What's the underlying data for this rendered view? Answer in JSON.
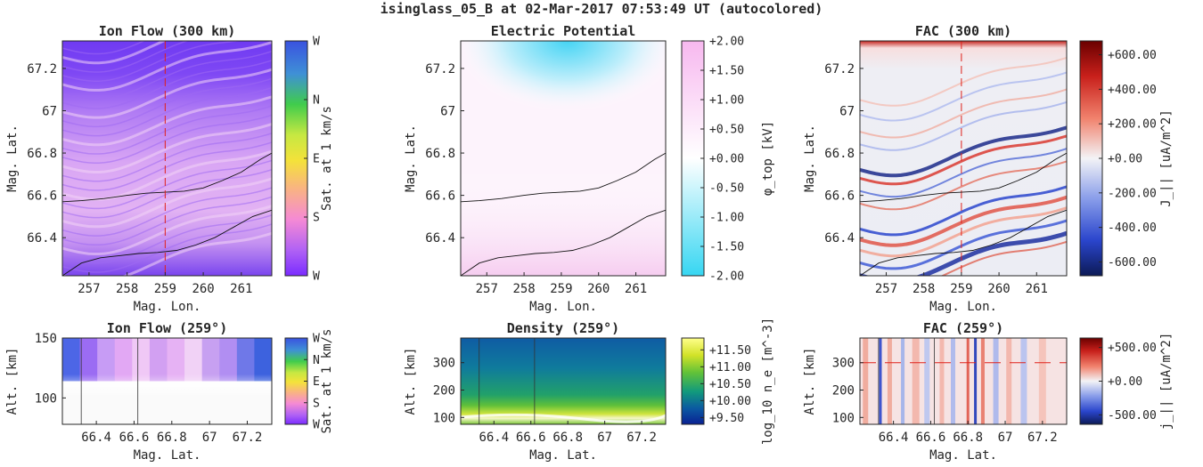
{
  "figure": {
    "suptitle": "isinglass_05_B at 02-Mar-2017 07:53:49 UT (autocolored)"
  },
  "chart_data": [
    {
      "id": "ion-flow-300",
      "type": "heatmap",
      "title": "Ion Flow (300 km)",
      "xlabel": "Mag. Lon.",
      "ylabel": "Mag. Lat.",
      "xlim": [
        256.3,
        261.8
      ],
      "ylim": [
        66.22,
        67.33
      ],
      "xticks": [
        257,
        258,
        259,
        260,
        261
      ],
      "yticks": [
        66.4,
        66.6,
        66.8,
        67.0,
        67.2
      ],
      "ytick_labels": [
        "66.4",
        "66.6",
        "66.8",
        "67",
        "67.2"
      ],
      "colorbar": {
        "label": "Sat. at 1 km/s",
        "ticks": [
          "W",
          "N",
          "E",
          "S",
          "W"
        ]
      },
      "cut_longitude": 259,
      "traces": [
        {
          "x": [
            256.3,
            256.8,
            257.4,
            258.0,
            258.5,
            259.0,
            259.5,
            260.0,
            260.5,
            261.0,
            261.5,
            261.8
          ],
          "y": [
            66.57,
            66.575,
            66.585,
            66.6,
            66.61,
            66.615,
            66.62,
            66.635,
            66.67,
            66.71,
            66.77,
            66.8
          ]
        },
        {
          "x": [
            256.3,
            256.8,
            257.3,
            257.8,
            258.3,
            258.8,
            259.3,
            259.8,
            260.3,
            260.8,
            261.3,
            261.8
          ],
          "y": [
            66.22,
            66.28,
            66.305,
            66.315,
            66.325,
            66.33,
            66.34,
            66.365,
            66.4,
            66.45,
            66.5,
            66.53
          ]
        }
      ]
    },
    {
      "id": "electric-potential",
      "type": "heatmap",
      "title": "Electric Potential",
      "xlabel": "Mag. Lon.",
      "ylabel": "Mag. Lat.",
      "xlim": [
        256.3,
        261.8
      ],
      "ylim": [
        66.22,
        67.33
      ],
      "xticks": [
        257,
        258,
        259,
        260,
        261
      ],
      "yticks": [
        66.4,
        66.6,
        66.8,
        67.0,
        67.2
      ],
      "ytick_labels": [
        "66.4",
        "66.6",
        "66.8",
        "67",
        "67.2"
      ],
      "colorbar": {
        "label": "φ_top [kV]",
        "range": [
          -2.0,
          2.0
        ],
        "ticks": [
          "+2.00",
          "+1.50",
          "+1.00",
          "+0.50",
          "+0.00",
          "-0.50",
          "-1.00",
          "-1.50",
          "-2.00"
        ]
      }
    },
    {
      "id": "fac-300",
      "type": "heatmap",
      "title": "FAC (300 km)",
      "xlabel": "Mag. Lon.",
      "ylabel": "Mag. Lat.",
      "xlim": [
        256.3,
        261.8
      ],
      "ylim": [
        66.22,
        67.33
      ],
      "xticks": [
        257,
        258,
        259,
        260,
        261
      ],
      "yticks": [
        66.4,
        66.6,
        66.8,
        67.0,
        67.2
      ],
      "ytick_labels": [
        "66.4",
        "66.6",
        "66.8",
        "67",
        "67.2"
      ],
      "colorbar": {
        "label": "J_|| [uA/m^2]",
        "range": [
          -680,
          680
        ],
        "ticks": [
          "+600.00",
          "+400.00",
          "+200.00",
          "+0.00",
          "-200.00",
          "-400.00",
          "-600.00"
        ]
      },
      "cut_longitude": 259
    },
    {
      "id": "ion-flow-259",
      "type": "heatmap",
      "title": "Ion Flow (259°)",
      "xlabel": "Mag. Lat.",
      "ylabel": "Alt. [km]",
      "xlim": [
        66.22,
        67.33
      ],
      "ylim": [
        78,
        150
      ],
      "xticks": [
        66.4,
        66.6,
        66.8,
        67.0,
        67.2
      ],
      "xtick_labels": [
        "66.4",
        "66.6",
        "66.8",
        "67",
        "67.2"
      ],
      "yticks": [
        100,
        150
      ],
      "colorbar": {
        "label": "Sat. at 1 km/s",
        "ticks": [
          "W",
          "N",
          "E",
          "S",
          "W"
        ]
      },
      "boundary_latitudes": [
        66.32,
        66.62
      ]
    },
    {
      "id": "density-259",
      "type": "heatmap",
      "title": "Density (259°)",
      "xlabel": "Mag. Lat.",
      "ylabel": "Alt. [km]",
      "xlim": [
        66.22,
        67.33
      ],
      "ylim": [
        75,
        390
      ],
      "xticks": [
        66.4,
        66.6,
        66.8,
        67.0,
        67.2
      ],
      "xtick_labels": [
        "66.4",
        "66.6",
        "66.8",
        "67",
        "67.2"
      ],
      "yticks": [
        100,
        200,
        300
      ],
      "colorbar": {
        "label": "log_10 n_e [m^-3]",
        "range": [
          9.3,
          11.85
        ],
        "ticks": [
          "+11.50",
          "+11.00",
          "+10.50",
          "+10.00",
          "+9.50"
        ]
      },
      "boundary_latitudes": [
        66.32,
        66.62
      ]
    },
    {
      "id": "fac-259",
      "type": "heatmap",
      "title": "FAC (259°)",
      "xlabel": "Mag. Lat.",
      "ylabel": "Alt. [km]",
      "xlim": [
        66.22,
        67.33
      ],
      "ylim": [
        75,
        390
      ],
      "xticks": [
        66.4,
        66.6,
        66.8,
        67.0,
        67.2
      ],
      "xtick_labels": [
        "66.4",
        "66.6",
        "66.8",
        "67",
        "67.2"
      ],
      "yticks": [
        100,
        200,
        300
      ],
      "colorbar": {
        "label": "j_|| [uA/m^2]",
        "range": [
          -640,
          640
        ],
        "ticks": [
          "+500.00",
          "+0.00",
          "-500.00"
        ]
      },
      "cut_altitude": 300,
      "boundary_latitudes": [
        66.32,
        66.62
      ]
    }
  ]
}
